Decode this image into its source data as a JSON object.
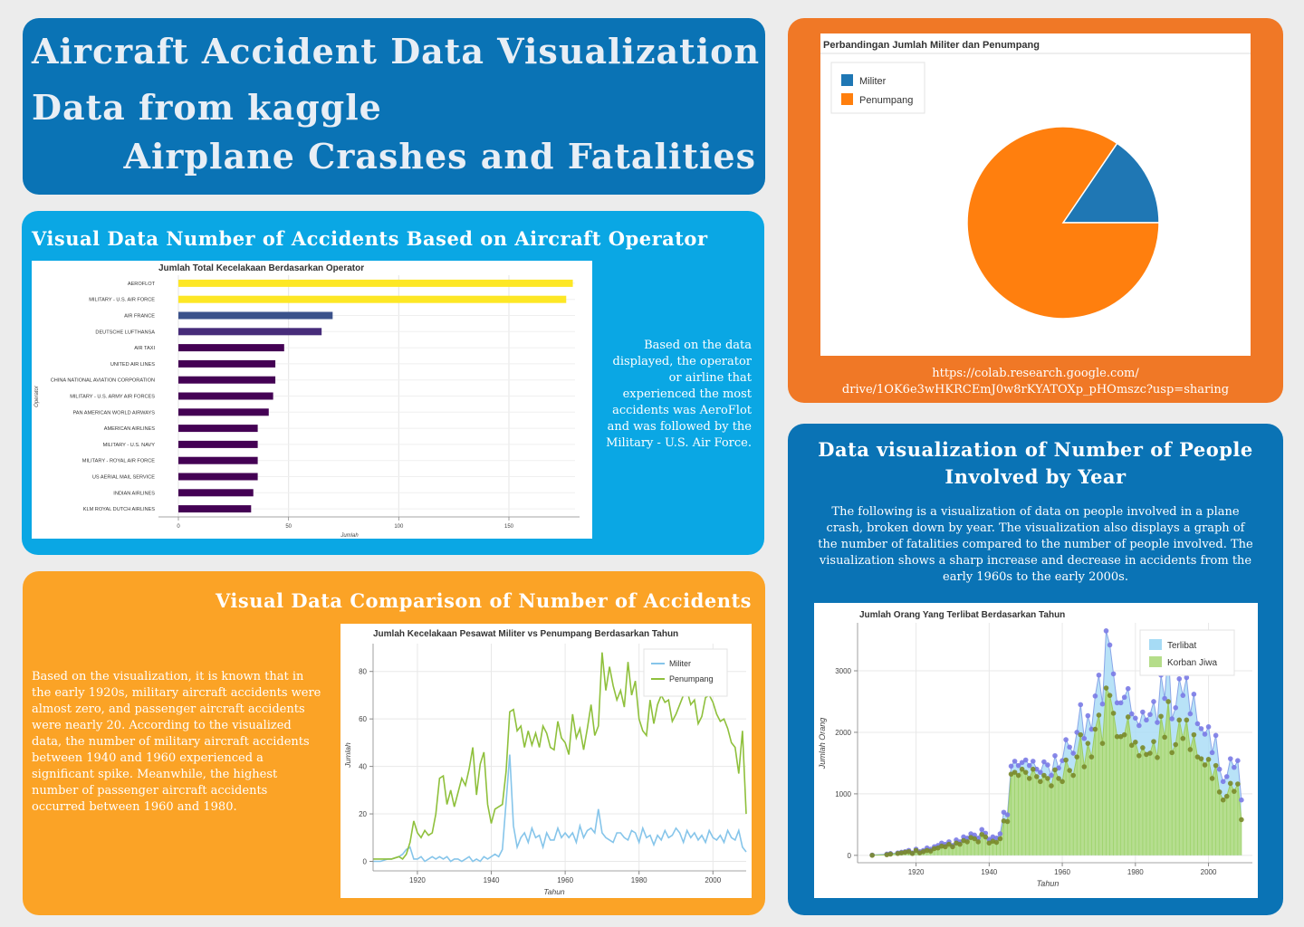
{
  "header": {
    "line1": "Aircraft Accident Data Visualization",
    "line2": "Data from kaggle",
    "line3": "Airplane Crashes and Fatalities"
  },
  "operator_section": {
    "title": "Visual Data Number of Accidents Based on Aircraft Operator",
    "description": "Based on the data displayed, the operator or airline that experienced the most accidents was AeroFlot and was followed by the Military - U.S. Air Force."
  },
  "comparison_section": {
    "title": "Visual Data Comparison of Number of Accidents",
    "description": "Based on the visualization, it is known that in the early 1920s, military aircraft accidents were almost zero, and passenger aircraft accidents were nearly 20. According to the visualized data, the number of military aircraft accidents between 1940 and 1960 experienced a significant spike. Meanwhile, the highest number of passenger aircraft accidents occurred between 1960 and 1980."
  },
  "pie_section": {
    "link": "https://colab.research.google.com/drive/1OK6e3wHKRCEmJ0w8rKYATOXp_pHOmszc?usp=sharing"
  },
  "people_section": {
    "title": "Data visualization of Number of People Involved by Year",
    "description": "The following is a visualization of data on people involved in a plane crash, broken down by year. The visualization also displays a graph of the number of fatalities compared to the number of people involved. The visualization shows a sharp increase and decrease in accidents from the early 1960s to the early 2000s."
  },
  "chart_data": [
    {
      "id": "operators",
      "type": "bar",
      "orientation": "horizontal",
      "title": "Jumlah Total Kecelakaan Berdasarkan Operator",
      "xlabel": "Jumlah",
      "ylabel": "Operator",
      "xlim": [
        0,
        180
      ],
      "xticks": [
        0,
        50,
        100,
        150
      ],
      "categories": [
        "AEROFLOT",
        "MILITARY - U.S. AIR FORCE",
        "AIR FRANCE",
        "DEUTSCHE LUFTHANSA",
        "AIR TAXI",
        "UNITED AIR LINES",
        "CHINA NATIONAL AVIATION CORPORATION",
        "MILITARY - U.S. ARMY AIR FORCES",
        "PAN AMERICAN WORLD AIRWAYS",
        "AMERICAN AIRLINES",
        "MILITARY - U.S. NAVY",
        "MILITARY - ROYAL AIR FORCE",
        "US AERIAL MAIL SERVICE",
        "INDIAN AIRLINES",
        "KLM ROYAL DUTCH AIRLINES"
      ],
      "values": [
        179,
        176,
        70,
        65,
        48,
        44,
        44,
        43,
        41,
        36,
        36,
        36,
        36,
        34,
        33
      ],
      "colors": [
        "#fde725",
        "#fde725",
        "#3b528b",
        "#472c7a",
        "#440154",
        "#440154",
        "#440154",
        "#440154",
        "#440154",
        "#440154",
        "#440154",
        "#440154",
        "#440154",
        "#440154",
        "#440154"
      ],
      "grid": true
    },
    {
      "id": "military_vs_passenger",
      "type": "line",
      "title": "Jumlah Kecelakaan Pesawat Militer vs Penumpang Berdasarkan Tahun",
      "xlabel": "Tahun",
      "ylabel": "Jumlah",
      "xlim": [
        1908,
        2009
      ],
      "ylim": [
        -4,
        94
      ],
      "xticks": [
        1920,
        1940,
        1960,
        1980,
        2000
      ],
      "yticks": [
        0,
        20,
        40,
        60,
        80
      ],
      "legend": "top-right",
      "grid": true,
      "x": [
        1908,
        1910,
        1912,
        1913,
        1915,
        1916,
        1917,
        1918,
        1919,
        1920,
        1921,
        1922,
        1923,
        1924,
        1925,
        1926,
        1927,
        1928,
        1929,
        1930,
        1931,
        1932,
        1933,
        1934,
        1935,
        1936,
        1937,
        1938,
        1939,
        1940,
        1941,
        1942,
        1943,
        1944,
        1945,
        1946,
        1947,
        1948,
        1949,
        1950,
        1951,
        1952,
        1953,
        1954,
        1955,
        1956,
        1957,
        1958,
        1959,
        1960,
        1961,
        1962,
        1963,
        1964,
        1965,
        1966,
        1967,
        1968,
        1969,
        1970,
        1971,
        1972,
        1973,
        1974,
        1975,
        1976,
        1977,
        1978,
        1979,
        1980,
        1981,
        1982,
        1983,
        1984,
        1985,
        1986,
        1987,
        1988,
        1989,
        1990,
        1991,
        1992,
        1993,
        1994,
        1995,
        1996,
        1997,
        1998,
        1999,
        2000,
        2001,
        2002,
        2003,
        2004,
        2005,
        2006,
        2007,
        2008,
        2009
      ],
      "series": [
        {
          "name": "Militer",
          "color": "#86c5ea",
          "values": [
            0,
            0,
            1,
            1,
            2,
            3,
            5,
            6,
            1,
            1,
            2,
            0,
            1,
            2,
            1,
            2,
            1,
            2,
            0,
            1,
            1,
            0,
            1,
            2,
            0,
            1,
            0,
            2,
            1,
            2,
            3,
            2,
            5,
            25,
            45,
            15,
            6,
            10,
            12,
            8,
            14,
            10,
            11,
            6,
            12,
            9,
            9,
            14,
            10,
            12,
            10,
            12,
            8,
            15,
            10,
            13,
            14,
            12,
            22,
            12,
            10,
            9,
            8,
            12,
            12,
            10,
            9,
            13,
            12,
            8,
            14,
            10,
            11,
            7,
            11,
            9,
            13,
            10,
            11,
            14,
            12,
            8,
            13,
            10,
            12,
            9,
            11,
            8,
            13,
            10,
            9,
            11,
            8,
            13,
            10,
            9,
            13,
            6,
            4
          ]
        },
        {
          "name": "Penumpang",
          "color": "#8fc03c",
          "values": [
            1,
            1,
            1,
            1,
            2,
            1,
            3,
            8,
            17,
            12,
            10,
            13,
            11,
            12,
            20,
            35,
            36,
            24,
            30,
            23,
            29,
            35,
            32,
            39,
            48,
            28,
            41,
            46,
            24,
            16,
            22,
            23,
            24,
            38,
            63,
            64,
            55,
            57,
            48,
            55,
            49,
            54,
            48,
            57,
            54,
            48,
            47,
            59,
            52,
            50,
            45,
            62,
            52,
            56,
            47,
            56,
            66,
            53,
            57,
            88,
            72,
            82,
            74,
            68,
            72,
            65,
            84,
            70,
            76,
            60,
            55,
            53,
            68,
            58,
            66,
            70,
            67,
            68,
            59,
            62,
            66,
            70,
            72,
            66,
            68,
            58,
            61,
            69,
            70,
            67,
            62,
            59,
            60,
            56,
            50,
            48,
            37,
            55,
            20
          ]
        }
      ]
    },
    {
      "id": "pie",
      "type": "pie",
      "title": "Perbandingan Jumlah Militer dan Penumpang",
      "legend": "top-left",
      "slices": [
        {
          "label": "Militer",
          "value": 15.5,
          "color": "#1f77b4"
        },
        {
          "label": "Penumpang",
          "value": 84.5,
          "color": "#ff7f0e"
        }
      ]
    },
    {
      "id": "people",
      "type": "area",
      "title": "Jumlah Orang Yang Terlibat Berdasarkan Tahun",
      "xlabel": "Tahun",
      "ylabel": "Jumlah Orang",
      "xlim": [
        1904,
        2012
      ],
      "ylim": [
        -120,
        3780
      ],
      "xticks": [
        1920,
        1940,
        1960,
        1980,
        2000
      ],
      "yticks": [
        0,
        1000,
        2000,
        3000
      ],
      "legend": "top-right",
      "grid": true,
      "x": [
        1908,
        1912,
        1913,
        1915,
        1916,
        1917,
        1918,
        1919,
        1920,
        1921,
        1922,
        1923,
        1924,
        1925,
        1926,
        1927,
        1928,
        1929,
        1930,
        1931,
        1932,
        1933,
        1934,
        1935,
        1936,
        1937,
        1938,
        1939,
        1940,
        1941,
        1942,
        1943,
        1944,
        1945,
        1946,
        1947,
        1948,
        1949,
        1950,
        1951,
        1952,
        1953,
        1954,
        1955,
        1956,
        1957,
        1958,
        1959,
        1960,
        1961,
        1962,
        1963,
        1964,
        1965,
        1966,
        1967,
        1968,
        1969,
        1970,
        1971,
        1972,
        1973,
        1974,
        1975,
        1976,
        1977,
        1978,
        1979,
        1980,
        1981,
        1982,
        1983,
        1984,
        1985,
        1986,
        1987,
        1988,
        1989,
        1990,
        1991,
        1992,
        1993,
        1994,
        1995,
        1996,
        1997,
        1998,
        1999,
        2000,
        2001,
        2002,
        2003,
        2004,
        2005,
        2006,
        2007,
        2008,
        2009
      ],
      "series": [
        {
          "name": "Terlibat",
          "color": "#a6dbf5",
          "values": [
            5,
            20,
            30,
            40,
            50,
            60,
            80,
            40,
            100,
            60,
            80,
            120,
            100,
            140,
            160,
            200,
            180,
            220,
            160,
            250,
            220,
            300,
            280,
            350,
            330,
            280,
            420,
            360,
            260,
            300,
            280,
            350,
            700,
            660,
            1450,
            1530,
            1460,
            1510,
            1550,
            1460,
            1530,
            1400,
            1350,
            1520,
            1470,
            1300,
            1620,
            1420,
            1540,
            1880,
            1760,
            1660,
            2000,
            2450,
            1900,
            2270,
            2050,
            2590,
            2930,
            2460,
            3650,
            3420,
            2950,
            2480,
            2480,
            2570,
            2710,
            2300,
            2230,
            2110,
            2330,
            2200,
            2290,
            2500,
            2160,
            2930,
            2550,
            3350,
            2220,
            2400,
            2870,
            2600,
            2890,
            2300,
            2620,
            2140,
            2060,
            1970,
            2090,
            1670,
            1950,
            1400,
            1200,
            1280,
            1570,
            1430,
            1540,
            900
          ]
        },
        {
          "name": "Korban Jiwa",
          "color": "#b5dd8a",
          "values": [
            1,
            10,
            20,
            30,
            40,
            50,
            60,
            30,
            80,
            40,
            60,
            80,
            70,
            110,
            120,
            150,
            140,
            180,
            140,
            200,
            180,
            240,
            220,
            290,
            270,
            220,
            340,
            300,
            200,
            230,
            210,
            270,
            560,
            550,
            1320,
            1350,
            1300,
            1400,
            1350,
            1250,
            1400,
            1280,
            1200,
            1300,
            1250,
            1130,
            1390,
            1250,
            1200,
            1550,
            1380,
            1300,
            1600,
            1960,
            1440,
            1820,
            1600,
            2050,
            2280,
            1820,
            2720,
            2600,
            2310,
            1930,
            1930,
            1960,
            2250,
            1790,
            1840,
            1620,
            1750,
            1640,
            1660,
            1850,
            1590,
            2260,
            1920,
            2500,
            1670,
            1800,
            2200,
            1900,
            2200,
            1720,
            1960,
            1600,
            1570,
            1470,
            1560,
            1250,
            1460,
            1030,
            900,
            960,
            1170,
            1040,
            1160,
            580
          ]
        }
      ]
    }
  ]
}
